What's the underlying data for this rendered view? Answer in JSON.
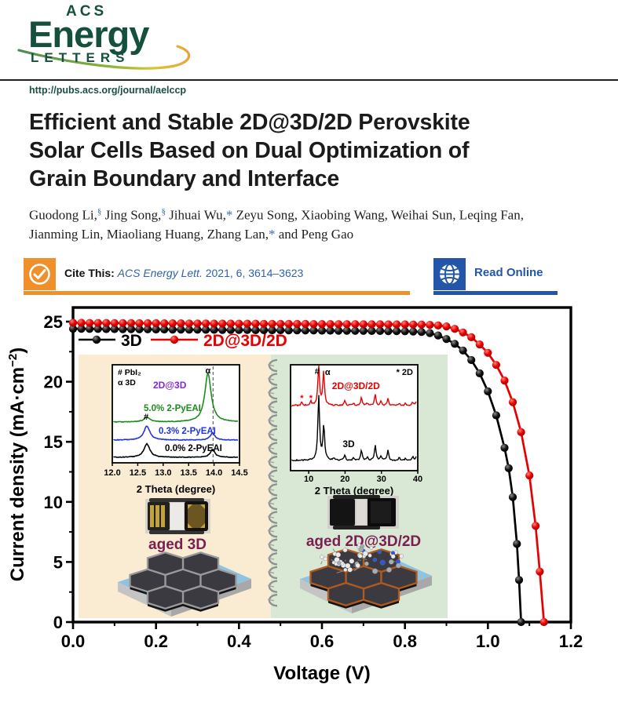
{
  "header": {
    "logo": {
      "acs": "ACS",
      "energy": "Energy",
      "letters": "LETTERS"
    },
    "url": "http://pubs.acs.org/journal/aelccp"
  },
  "article": {
    "title_lines": [
      "Efficient and Stable 2D@3D/2D Perovskite",
      "Solar Cells Based on Dual Optimization of",
      "Grain Boundary and Interface"
    ],
    "authors_line1": [
      {
        "t": "Guodong Li,"
      },
      {
        "sup": "§"
      },
      {
        "t": " Jing Song,"
      },
      {
        "sup": "§"
      },
      {
        "t": " Jihuai Wu,"
      },
      {
        "star": "*"
      },
      {
        "t": " Zeyu Song, Xiaobing Wang, Weihai Sun, Leqing Fan,"
      }
    ],
    "authors_line2": [
      {
        "t": "Jianming Lin, Miaoliang Huang, Zhang Lan,"
      },
      {
        "star": "*"
      },
      {
        "t": " and Peng Gao"
      }
    ],
    "cite": {
      "label": "Cite This:",
      "journal": "ACS Energy Lett.",
      "ref": " 2021, 6, 3614–3623"
    },
    "read_online": "Read Online"
  },
  "colors": {
    "logo_green": "#15503e",
    "orange": "#f0902d",
    "badge_blue": "#2356a8",
    "cite_blue": "#2f62ae",
    "tan_panel": "#faecd2",
    "green_panel": "#d8e8d4",
    "maroon": "#7b1f50",
    "purple": "#8426d9",
    "xrd_green": "#1c8c1c",
    "xrd_blue": "#2233dd",
    "red": "#e60000",
    "black": "#000000"
  },
  "figure": {
    "legend": [
      {
        "label": "3D",
        "color": "#000000"
      },
      {
        "label": "2D@3D/2D",
        "color": "#e60000"
      }
    ],
    "captions": {
      "left": "aged 3D",
      "right": "aged 2D@3D/2D"
    },
    "ylabel_parts": [
      "Current density (mA·cm",
      "−2",
      ")"
    ]
  },
  "chart_data": [
    {
      "id": "jv-main",
      "type": "line",
      "xlabel": "Voltage (V)",
      "ylabel": "Current density (mA·cm⁻²)",
      "xlim": [
        0,
        1.2
      ],
      "ylim": [
        0,
        26.2
      ],
      "xtick_labels": [
        "0.0",
        "0.2",
        "0.4",
        "0.6",
        "0.8",
        "1.0",
        "1.2"
      ],
      "xticks": [
        0,
        0.2,
        0.4,
        0.6,
        0.8,
        1.0,
        1.2
      ],
      "xticks_minor": [
        0.1,
        0.3,
        0.5,
        0.7,
        0.9,
        1.1
      ],
      "ytick_labels": [
        "0",
        "5",
        "10",
        "15",
        "20",
        "25"
      ],
      "yticks": [
        0,
        5,
        10,
        15,
        20,
        25
      ],
      "yticks_minor": [
        2.5,
        7.5,
        12.5,
        17.5,
        22.5
      ],
      "grid": false,
      "legend_position": "upper-left",
      "series": [
        {
          "name": "3D",
          "color": "#000000",
          "points": [
            [
              0,
              24.4
            ],
            [
              0.02,
              24.4
            ],
            [
              0.04,
              24.39
            ],
            [
              0.06,
              24.39
            ],
            [
              0.08,
              24.38
            ],
            [
              0.1,
              24.38
            ],
            [
              0.12,
              24.37
            ],
            [
              0.14,
              24.37
            ],
            [
              0.16,
              24.36
            ],
            [
              0.18,
              24.36
            ],
            [
              0.2,
              24.35
            ],
            [
              0.22,
              24.35
            ],
            [
              0.24,
              24.34
            ],
            [
              0.26,
              24.34
            ],
            [
              0.28,
              24.33
            ],
            [
              0.3,
              24.33
            ],
            [
              0.32,
              24.32
            ],
            [
              0.34,
              24.32
            ],
            [
              0.36,
              24.31
            ],
            [
              0.38,
              24.31
            ],
            [
              0.4,
              24.3
            ],
            [
              0.42,
              24.3
            ],
            [
              0.44,
              24.29
            ],
            [
              0.46,
              24.29
            ],
            [
              0.48,
              24.28
            ],
            [
              0.5,
              24.28
            ],
            [
              0.52,
              24.27
            ],
            [
              0.54,
              24.27
            ],
            [
              0.56,
              24.26
            ],
            [
              0.58,
              24.26
            ],
            [
              0.6,
              24.25
            ],
            [
              0.62,
              24.25
            ],
            [
              0.64,
              24.24
            ],
            [
              0.66,
              24.24
            ],
            [
              0.68,
              24.23
            ],
            [
              0.7,
              24.23
            ],
            [
              0.72,
              24.22
            ],
            [
              0.74,
              24.22
            ],
            [
              0.76,
              24.21
            ],
            [
              0.78,
              24.21
            ],
            [
              0.8,
              24.2
            ],
            [
              0.82,
              24.18
            ],
            [
              0.84,
              24.14
            ],
            [
              0.86,
              24.05
            ],
            [
              0.88,
              23.85
            ],
            [
              0.9,
              23.55
            ],
            [
              0.92,
              23.15
            ],
            [
              0.94,
              22.6
            ],
            [
              0.96,
              21.8
            ],
            [
              0.98,
              20.7
            ],
            [
              1.0,
              19.2
            ],
            [
              1.02,
              17.2
            ],
            [
              1.04,
              14.5
            ],
            [
              1.05,
              12.8
            ],
            [
              1.06,
              10.4
            ],
            [
              1.07,
              6.5
            ],
            [
              1.075,
              3.5
            ],
            [
              1.08,
              0
            ]
          ]
        },
        {
          "name": "2D@3D/2D",
          "color": "#e60000",
          "points": [
            [
              0,
              24.9
            ],
            [
              0.02,
              24.9
            ],
            [
              0.04,
              24.89
            ],
            [
              0.06,
              24.89
            ],
            [
              0.08,
              24.89
            ],
            [
              0.1,
              24.88
            ],
            [
              0.12,
              24.88
            ],
            [
              0.14,
              24.88
            ],
            [
              0.16,
              24.87
            ],
            [
              0.18,
              24.87
            ],
            [
              0.2,
              24.87
            ],
            [
              0.22,
              24.86
            ],
            [
              0.24,
              24.86
            ],
            [
              0.26,
              24.86
            ],
            [
              0.28,
              24.85
            ],
            [
              0.3,
              24.85
            ],
            [
              0.32,
              24.85
            ],
            [
              0.34,
              24.84
            ],
            [
              0.36,
              24.84
            ],
            [
              0.38,
              24.84
            ],
            [
              0.4,
              24.83
            ],
            [
              0.42,
              24.83
            ],
            [
              0.44,
              24.83
            ],
            [
              0.46,
              24.82
            ],
            [
              0.48,
              24.82
            ],
            [
              0.5,
              24.82
            ],
            [
              0.52,
              24.81
            ],
            [
              0.54,
              24.81
            ],
            [
              0.56,
              24.81
            ],
            [
              0.58,
              24.8
            ],
            [
              0.6,
              24.8
            ],
            [
              0.62,
              24.8
            ],
            [
              0.64,
              24.79
            ],
            [
              0.66,
              24.79
            ],
            [
              0.68,
              24.79
            ],
            [
              0.7,
              24.78
            ],
            [
              0.72,
              24.78
            ],
            [
              0.74,
              24.78
            ],
            [
              0.76,
              24.77
            ],
            [
              0.78,
              24.77
            ],
            [
              0.8,
              24.77
            ],
            [
              0.82,
              24.76
            ],
            [
              0.84,
              24.76
            ],
            [
              0.86,
              24.73
            ],
            [
              0.88,
              24.68
            ],
            [
              0.9,
              24.6
            ],
            [
              0.92,
              24.4
            ],
            [
              0.94,
              24.1
            ],
            [
              0.96,
              23.7
            ],
            [
              0.98,
              23.1
            ],
            [
              1.0,
              22.4
            ],
            [
              1.02,
              21.4
            ],
            [
              1.04,
              20.1
            ],
            [
              1.06,
              18.3
            ],
            [
              1.08,
              15.8
            ],
            [
              1.1,
              12.2
            ],
            [
              1.115,
              8.0
            ],
            [
              1.125,
              4.2
            ],
            [
              1.135,
              0
            ]
          ]
        }
      ]
    },
    {
      "id": "xrd-inset-left",
      "type": "line",
      "xlabel": "2 Theta (degree)",
      "xlim": [
        12.0,
        14.5
      ],
      "xtick_labels": [
        "12.0",
        "12.5",
        "13.0",
        "13.5",
        "14.0",
        "14.5"
      ],
      "xticks": [
        12.0,
        12.5,
        13.0,
        13.5,
        14.0,
        14.5
      ],
      "dashed_line_x": 13.98,
      "annotations": {
        "marker_legend_1": "# PbI₂",
        "marker_legend_2": "α 3D",
        "title_label": "2D@3D",
        "hash": "#",
        "alpha": "α"
      },
      "series": [
        {
          "name": "0.0% 2-PyEAI",
          "color": "#000000",
          "peaks": [
            [
              12.68,
              17,
              0.07
            ],
            [
              13.97,
              10,
              0.055
            ]
          ]
        },
        {
          "name": "0.3% 2-PyEAI",
          "color": "#2233dd",
          "peaks": [
            [
              12.68,
              18,
              0.07
            ],
            [
              13.97,
              9,
              0.055
            ]
          ]
        },
        {
          "name": "5.0% 2-PyEAI",
          "color": "#1c8c1c",
          "peaks": [
            [
              12.68,
              6,
              0.07
            ],
            [
              13.88,
              62,
              0.075
            ]
          ]
        }
      ]
    },
    {
      "id": "xrd-inset-right",
      "type": "line",
      "xlabel": "2 Theta (degree)",
      "xlim": [
        5,
        40
      ],
      "xtick_labels": [
        "10",
        "20",
        "30",
        "40"
      ],
      "xticks": [
        10,
        20,
        30,
        40
      ],
      "annotations": {
        "hash": "#",
        "alpha": "α",
        "star_2d": "* 2D",
        "star": "*",
        "red_label": "2D@3D/2D",
        "black_label": "3D"
      },
      "series": [
        {
          "name": "2D@3D/2D",
          "color": "#e60000",
          "peaks": [
            [
              8.1,
              5,
              0.2
            ],
            [
              10.6,
              5,
              0.2
            ],
            [
              12.75,
              49,
              0.28
            ],
            [
              14.1,
              42,
              0.28
            ],
            [
              19.9,
              6,
              0.25
            ],
            [
              22.3,
              3,
              0.25
            ],
            [
              24.5,
              10,
              0.25
            ],
            [
              26.1,
              3,
              0.25
            ],
            [
              28.3,
              14,
              0.25
            ],
            [
              29.9,
              5,
              0.25
            ],
            [
              31.8,
              9,
              0.25
            ],
            [
              34.9,
              3,
              0.25
            ],
            [
              36.6,
              3,
              0.25
            ],
            [
              38.6,
              4,
              0.25
            ],
            [
              39.6,
              5,
              0.25
            ]
          ]
        },
        {
          "name": "3D",
          "color": "#000000",
          "peaks": [
            [
              12.75,
              82,
              0.28
            ],
            [
              14.15,
              44,
              0.28
            ],
            [
              16.9,
              3,
              0.25
            ],
            [
              19.9,
              7,
              0.25
            ],
            [
              22.3,
              3,
              0.25
            ],
            [
              24.5,
              13,
              0.25
            ],
            [
              26.2,
              4,
              0.25
            ],
            [
              28.3,
              20,
              0.25
            ],
            [
              29.9,
              6,
              0.25
            ],
            [
              31.8,
              13,
              0.25
            ],
            [
              34.9,
              4,
              0.25
            ],
            [
              36.6,
              2,
              0.25
            ],
            [
              38.6,
              5,
              0.25
            ],
            [
              39.7,
              7,
              0.25
            ]
          ]
        }
      ]
    }
  ]
}
